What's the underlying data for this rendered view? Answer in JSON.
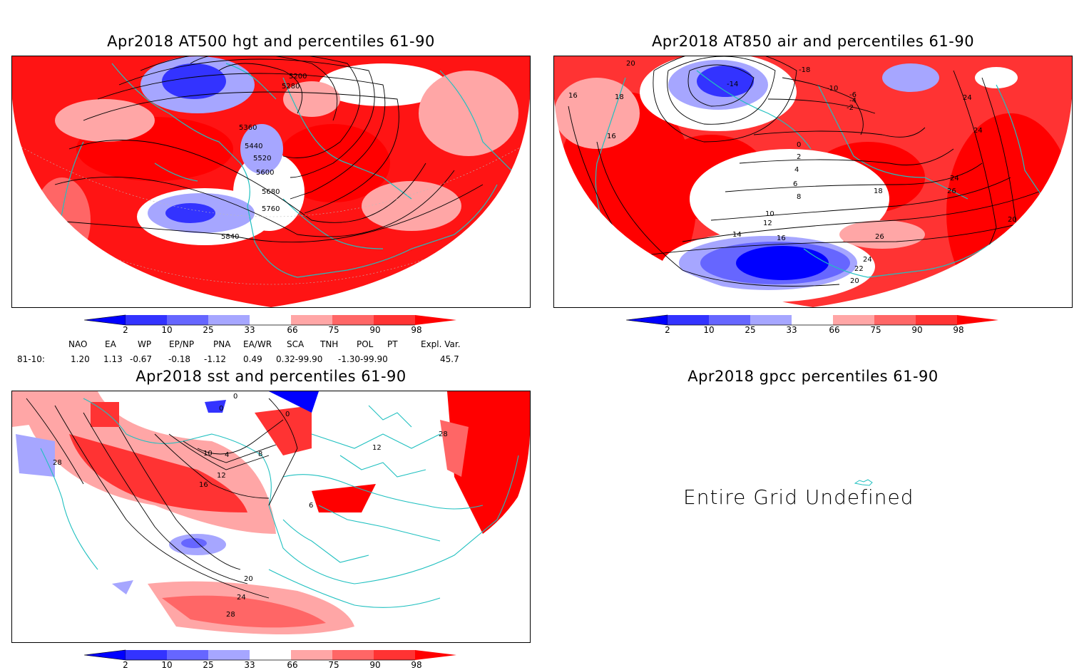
{
  "panels": {
    "top_left": {
      "title": "Apr2018 AT500 hgt and percentiles 61-90",
      "contour_labels": [
        "5200",
        "5280",
        "5360",
        "5440",
        "5520",
        "5600",
        "5680",
        "5760",
        "5840"
      ]
    },
    "top_right": {
      "title": "Apr2018 AT850 air and percentiles 61-90",
      "contour_labels": [
        "20",
        "18",
        "16",
        "16",
        "-14",
        "-18",
        "-10",
        "-6",
        "-4",
        "-2",
        "0",
        "2",
        "4",
        "6",
        "8",
        "10",
        "12",
        "14",
        "16",
        "18",
        "24",
        "24",
        "24",
        "26",
        "26",
        "24",
        "22",
        "20",
        "20"
      ]
    },
    "bottom_left": {
      "title": "Apr2018 sst and percentiles 61-90",
      "contour_labels": [
        "0",
        "0",
        "0",
        "28",
        "4",
        "8",
        "10",
        "12",
        "16",
        "20",
        "24",
        "28",
        "28",
        "12",
        "6"
      ]
    },
    "bottom_right": {
      "title": "Apr2018 gpcc percentiles 61-90",
      "message": "Entire Grid Undefined"
    }
  },
  "colorbar": {
    "labels": [
      "2",
      "10",
      "25",
      "33",
      "66",
      "75",
      "90",
      "98"
    ],
    "colors": [
      "#0000ff",
      "#3333ff",
      "#6666ff",
      "#a6a6ff",
      "#ffffff",
      "#ffa6a6",
      "#ff6666",
      "#ff3333",
      "#ff0000"
    ]
  },
  "indices": {
    "headers": [
      "NAO",
      "EA",
      "WP",
      "EP/NP",
      "PNA",
      "EA/WR",
      "SCA",
      "TNH",
      "POL",
      "PT",
      "Expl. Var."
    ],
    "row_label": "81-10:",
    "values": [
      "1.20",
      "1.13",
      "-0.67",
      "-0.18",
      "-1.12",
      "0.49",
      "0.32-99.90",
      "-1.30-99.90",
      "45.7"
    ]
  }
}
